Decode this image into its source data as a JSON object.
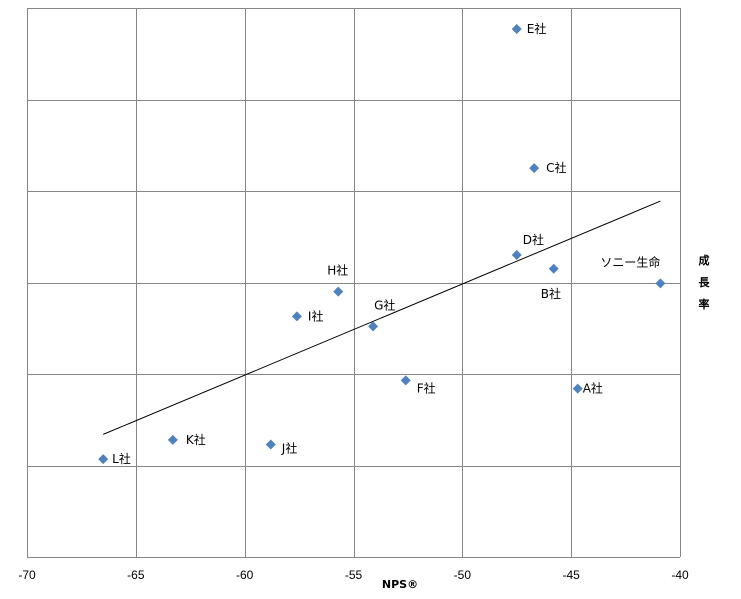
{
  "chart_data": {
    "type": "scatter",
    "title": "",
    "xlabel": "NPS®",
    "ylabel": "成長率",
    "xlim": [
      -70,
      -40
    ],
    "ylim": [
      0,
      6
    ],
    "x_ticks": [
      "-70",
      "-65",
      "-60",
      "-55",
      "-50",
      "-45",
      "-40"
    ],
    "grid": true,
    "marker_color": "#4F81BD",
    "trendline_color": "#000000",
    "points": [
      {
        "label": "E社",
        "x": -47.5,
        "y": 5.77
      },
      {
        "label": "C社",
        "x": -46.7,
        "y": 4.25
      },
      {
        "label": "D社",
        "x": -47.5,
        "y": 3.3
      },
      {
        "label": "B社",
        "x": -45.8,
        "y": 3.15
      },
      {
        "label": "ソニー生命",
        "x": -40.9,
        "y": 2.99
      },
      {
        "label": "H社",
        "x": -55.7,
        "y": 2.9
      },
      {
        "label": "I社",
        "x": -57.6,
        "y": 2.63
      },
      {
        "label": "G社",
        "x": -54.1,
        "y": 2.52
      },
      {
        "label": "F社",
        "x": -52.6,
        "y": 1.93
      },
      {
        "label": "A社",
        "x": -44.7,
        "y": 1.84
      },
      {
        "label": "K社",
        "x": -63.3,
        "y": 1.28
      },
      {
        "label": "J社",
        "x": -58.8,
        "y": 1.23
      },
      {
        "label": "L社",
        "x": -66.5,
        "y": 1.07
      }
    ],
    "trendline": {
      "x": [
        -66.5,
        -40.9
      ],
      "y": [
        1.34,
        3.89
      ]
    }
  }
}
